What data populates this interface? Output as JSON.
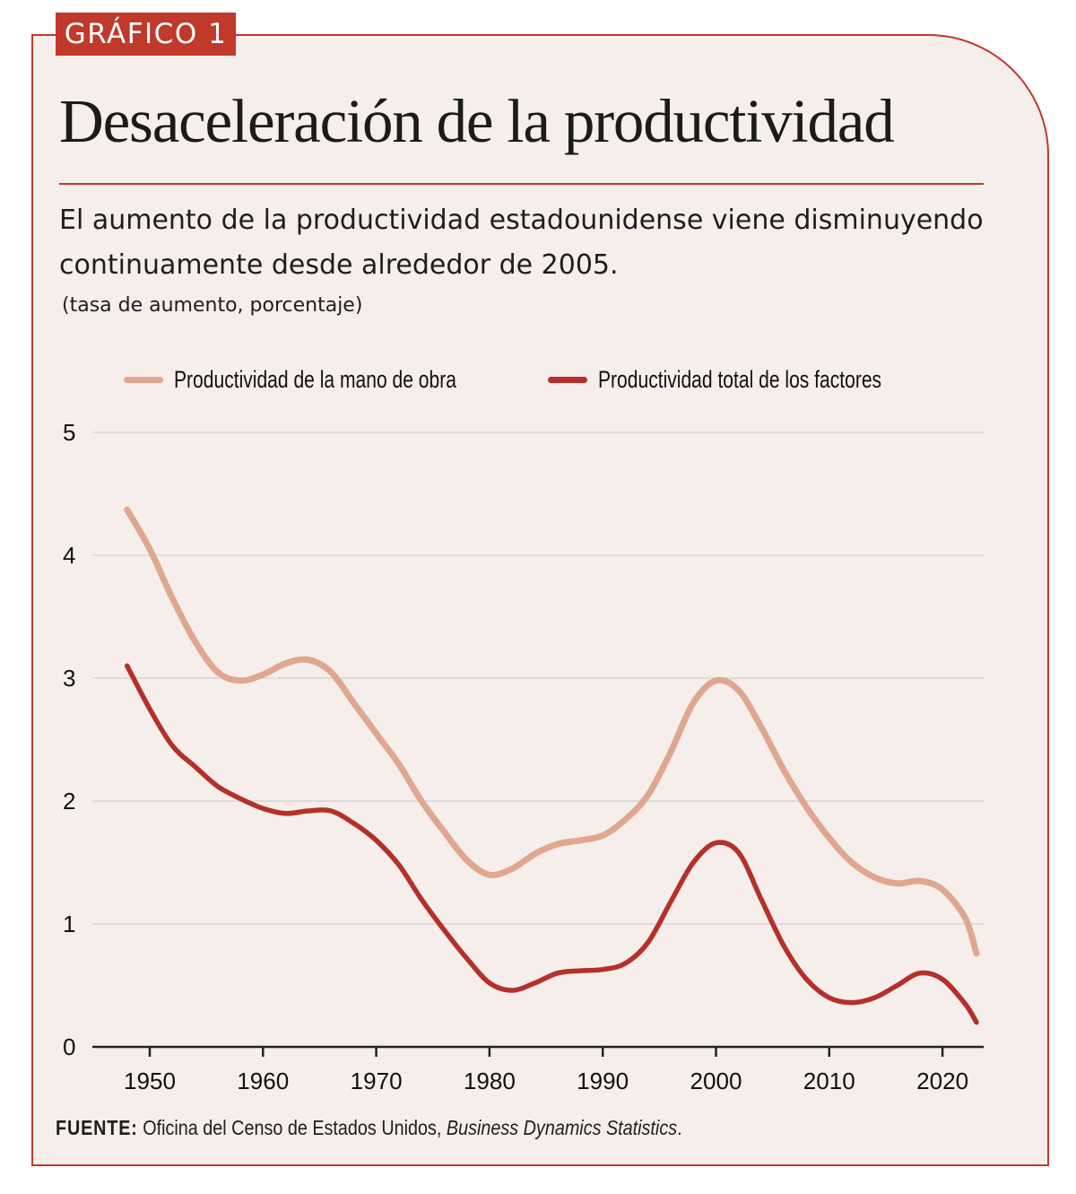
{
  "badge": {
    "label": "GRÁFICO 1"
  },
  "header": {
    "title": "Desaceleración de la productividad",
    "subtitle": "El aumento de la productividad estadounidense viene disminuyendo continuamente desde alrededor de 2005.",
    "units": "(tasa de aumento, porcentaje)"
  },
  "colors": {
    "accent": "#c0392b",
    "panel_background": "#f5eeeb",
    "labor_series": "#e0a68f",
    "tfp_series": "#b5302a",
    "gridline": "#d9d4d2",
    "axis": "#222222"
  },
  "source": {
    "label": "FUENTE:",
    "text": " Oficina del Censo de Estados Unidos, ",
    "italic": "Business Dynamics Statistics",
    "end": "."
  },
  "chart_data": {
    "type": "line",
    "title": "Desaceleración de la productividad",
    "subtitle": "El aumento de la productividad estadounidense viene disminuyendo continuamente desde alrededor de 2005.",
    "xlabel": "",
    "ylabel": "(tasa de aumento, porcentaje)",
    "xlim": [
      1945,
      2024
    ],
    "ylim": [
      0,
      5
    ],
    "x_ticks": [
      1950,
      1960,
      1970,
      1980,
      1990,
      2000,
      2010,
      2020
    ],
    "y_ticks": [
      0,
      1,
      2,
      3,
      4,
      5
    ],
    "grid": true,
    "legend_position": "top",
    "x": [
      1948,
      1950,
      1952,
      1954,
      1956,
      1958,
      1960,
      1962,
      1964,
      1966,
      1968,
      1970,
      1972,
      1974,
      1976,
      1978,
      1980,
      1982,
      1984,
      1986,
      1988,
      1990,
      1992,
      1994,
      1996,
      1998,
      2000,
      2002,
      2004,
      2006,
      2008,
      2010,
      2012,
      2014,
      2016,
      2018,
      2020,
      2022,
      2023
    ],
    "series": [
      {
        "name": "Productividad de la mano de obra",
        "color": "#e0a68f",
        "values": [
          4.37,
          4.05,
          3.65,
          3.3,
          3.05,
          2.98,
          3.03,
          3.12,
          3.15,
          3.05,
          2.8,
          2.55,
          2.3,
          2.0,
          1.75,
          1.52,
          1.4,
          1.45,
          1.57,
          1.65,
          1.68,
          1.72,
          1.85,
          2.05,
          2.4,
          2.8,
          2.98,
          2.9,
          2.6,
          2.25,
          1.95,
          1.7,
          1.5,
          1.38,
          1.33,
          1.35,
          1.28,
          1.05,
          0.76
        ]
      },
      {
        "name": "Productividad total de los factores",
        "color": "#b5302a",
        "values": [
          3.1,
          2.75,
          2.45,
          2.28,
          2.12,
          2.02,
          1.94,
          1.9,
          1.92,
          1.92,
          1.82,
          1.68,
          1.48,
          1.2,
          0.95,
          0.72,
          0.52,
          0.46,
          0.52,
          0.6,
          0.62,
          0.63,
          0.68,
          0.85,
          1.18,
          1.5,
          1.66,
          1.58,
          1.2,
          0.82,
          0.55,
          0.4,
          0.36,
          0.4,
          0.5,
          0.6,
          0.55,
          0.35,
          0.2
        ]
      }
    ]
  }
}
